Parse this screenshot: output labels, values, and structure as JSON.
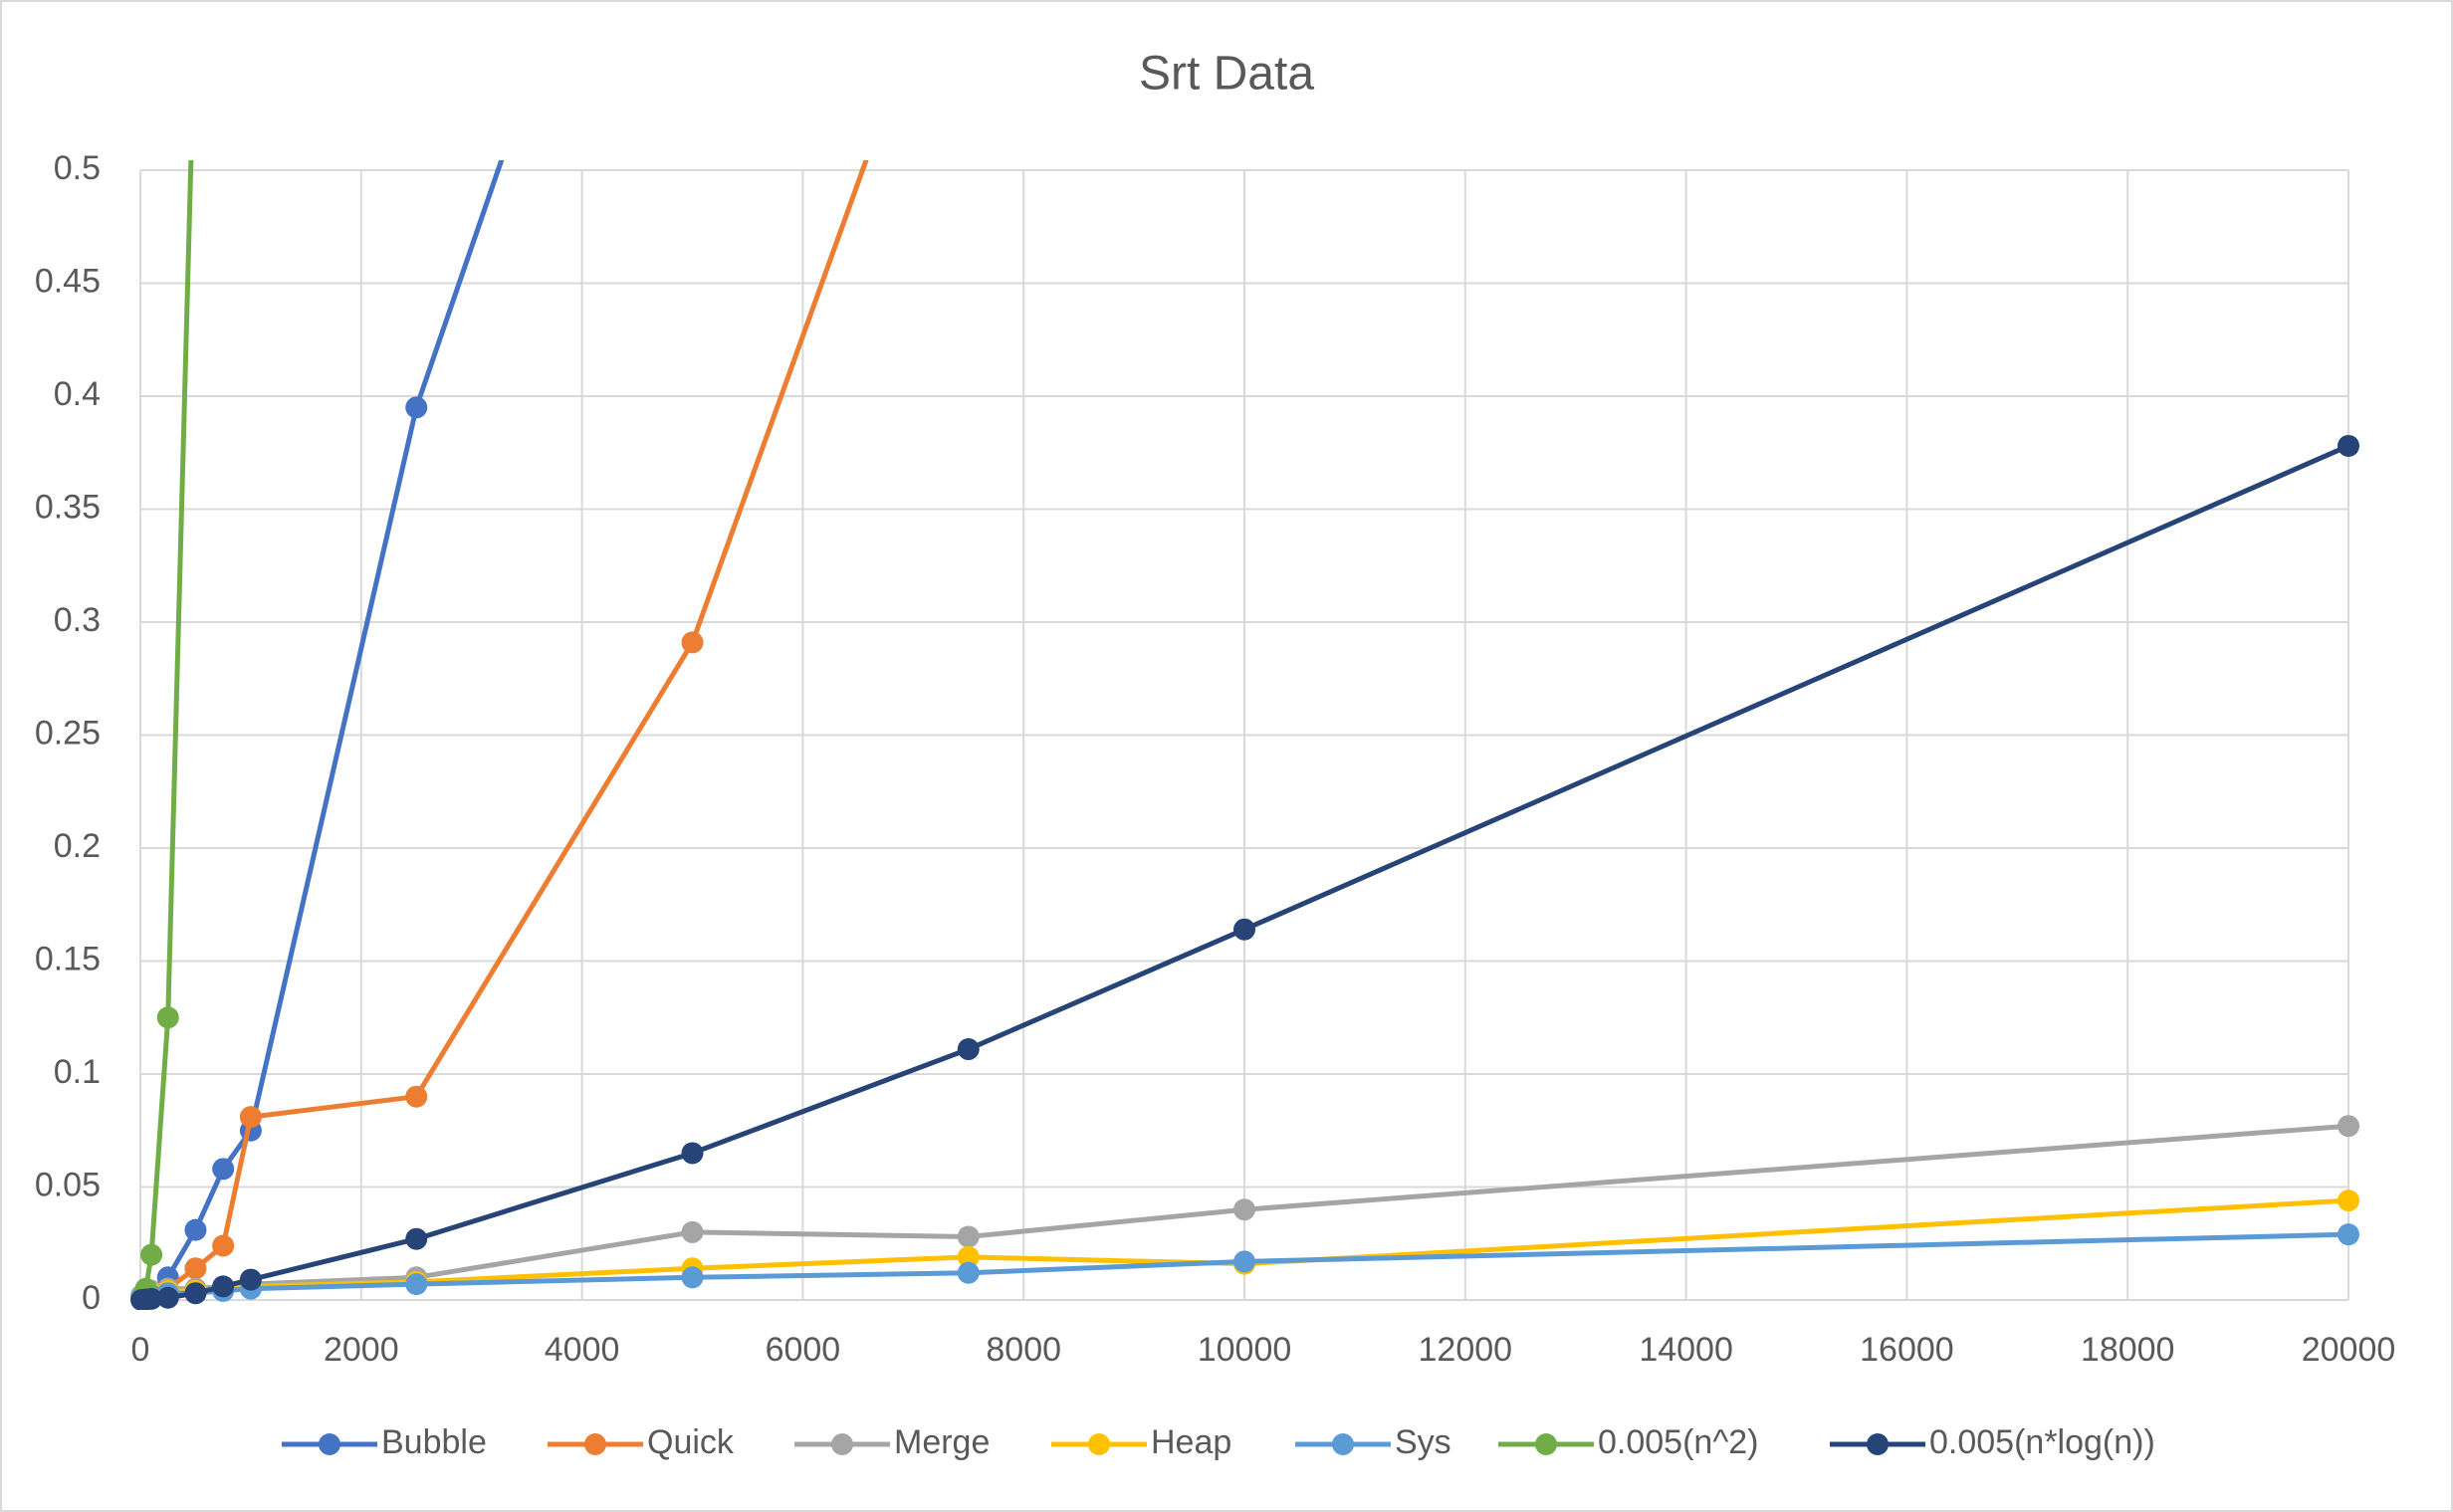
{
  "chart_data": {
    "type": "line",
    "title": "Srt Data",
    "x": [
      10,
      50,
      100,
      250,
      500,
      750,
      1000,
      2500,
      5000,
      7500,
      10000,
      20000
    ],
    "series": [
      {
        "name": "Bubble",
        "color": "#4472c4",
        "values": [
          0.001,
          0.002,
          0.004,
          0.01,
          0.031,
          0.058,
          0.075,
          0.395,
          0.75,
          null,
          null,
          null
        ]
      },
      {
        "name": "Quick",
        "color": "#ed7d31",
        "values": [
          0.001,
          0.002,
          0.003,
          0.005,
          0.014,
          0.024,
          0.081,
          0.09,
          0.291,
          0.63,
          null,
          null
        ]
      },
      {
        "name": "Merge",
        "color": "#a5a5a5",
        "values": [
          0.002,
          0.003,
          0.004,
          0.005,
          0.005,
          0.006,
          0.007,
          0.01,
          0.03,
          0.028,
          0.04,
          0.077
        ]
      },
      {
        "name": "Heap",
        "color": "#ffc000",
        "values": [
          0.001,
          0.002,
          0.003,
          0.004,
          0.004,
          0.005,
          0.006,
          0.008,
          0.014,
          0.019,
          0.016,
          0.044
        ]
      },
      {
        "name": "Sys",
        "color": "#5b9bd5",
        "values": [
          0.001,
          0.001,
          0.002,
          0.003,
          0.003,
          0.004,
          0.005,
          0.007,
          0.01,
          0.012,
          0.017,
          0.029
        ]
      },
      {
        "name": "0.005(n^2)",
        "color": "#70ad47",
        "values": [
          0.0002,
          0.005,
          0.02,
          0.125,
          0.58,
          null,
          null,
          null,
          null,
          null,
          null,
          null
        ]
      },
      {
        "name": "0.005(n*log(n))",
        "color": "#264478",
        "values": [
          0,
          0.0002,
          0.0005,
          0.001,
          0.003,
          0.006,
          0.009,
          0.027,
          0.065,
          0.111,
          0.164,
          0.378
        ]
      }
    ],
    "xlim": [
      0,
      20000
    ],
    "xticks": [
      0,
      2000,
      4000,
      6000,
      8000,
      10000,
      12000,
      14000,
      16000,
      18000,
      20000
    ],
    "ylim": [
      0,
      0.5
    ],
    "yticks": [
      0,
      0.05,
      0.1,
      0.15,
      0.2,
      0.25,
      0.3,
      0.35,
      0.4,
      0.45,
      0.5
    ],
    "grid": true,
    "legend": "bottom"
  }
}
